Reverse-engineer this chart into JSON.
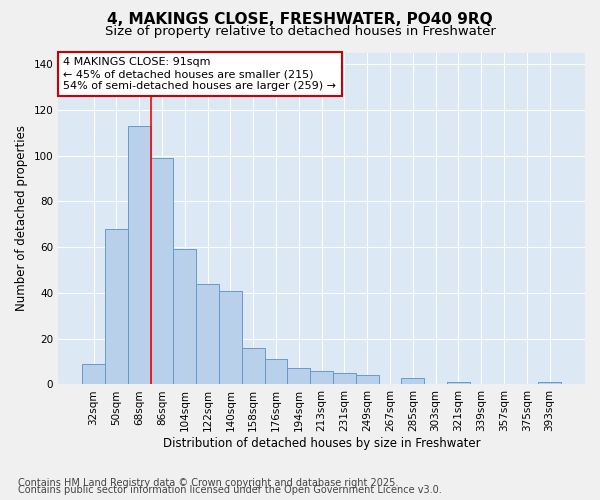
{
  "title": "4, MAKINGS CLOSE, FRESHWATER, PO40 9RQ",
  "subtitle": "Size of property relative to detached houses in Freshwater",
  "xlabel": "Distribution of detached houses by size in Freshwater",
  "ylabel": "Number of detached properties",
  "categories": [
    "32sqm",
    "50sqm",
    "68sqm",
    "86sqm",
    "104sqm",
    "122sqm",
    "140sqm",
    "158sqm",
    "176sqm",
    "194sqm",
    "213sqm",
    "231sqm",
    "249sqm",
    "267sqm",
    "285sqm",
    "303sqm",
    "321sqm",
    "339sqm",
    "357sqm",
    "375sqm",
    "393sqm"
  ],
  "values": [
    9,
    68,
    113,
    99,
    59,
    44,
    41,
    16,
    11,
    7,
    6,
    5,
    4,
    0,
    3,
    0,
    1,
    0,
    0,
    0,
    1
  ],
  "bar_color": "#b8d0ea",
  "bar_edge_color": "#6699cc",
  "bg_color": "#dce9f5",
  "grid_color": "#ffffff",
  "annotation_text": "4 MAKINGS CLOSE: 91sqm\n← 45% of detached houses are smaller (215)\n54% of semi-detached houses are larger (259) →",
  "annotation_box_color": "#ffffff",
  "annotation_box_edge_color": "#cc0000",
  "red_line_bin": 2,
  "ylim": [
    0,
    145
  ],
  "yticks": [
    0,
    20,
    40,
    60,
    80,
    100,
    120,
    140
  ],
  "footer1": "Contains HM Land Registry data © Crown copyright and database right 2025.",
  "footer2": "Contains public sector information licensed under the Open Government Licence v3.0.",
  "title_fontsize": 11,
  "subtitle_fontsize": 9.5,
  "label_fontsize": 8.5,
  "tick_fontsize": 7.5,
  "annotation_fontsize": 8,
  "footer_fontsize": 7
}
